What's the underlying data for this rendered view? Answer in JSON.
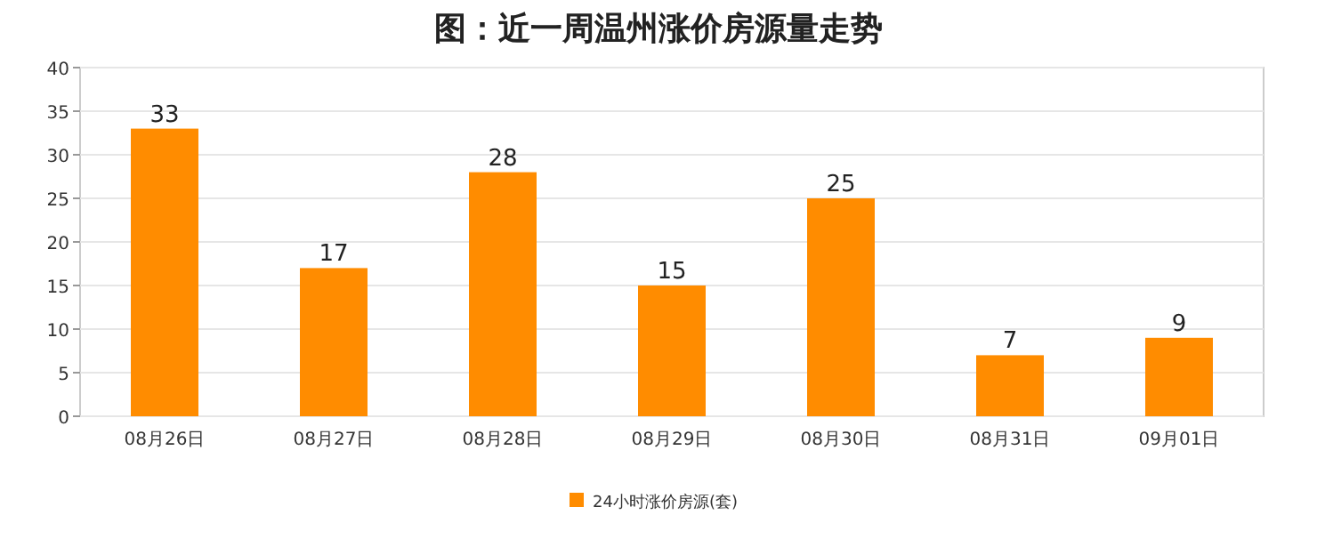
{
  "chart_data": {
    "type": "bar",
    "title": "图：近一周温州涨价房源量走势",
    "categories": [
      "08月26日",
      "08月27日",
      "08月28日",
      "08月29日",
      "08月30日",
      "08月31日",
      "09月01日"
    ],
    "series": [
      {
        "name": "24小时涨价房源(套)",
        "color": "#ff8c00",
        "values": [
          33,
          17,
          28,
          15,
          25,
          7,
          9
        ]
      }
    ],
    "ylim": [
      0,
      40
    ],
    "yticks": [
      0,
      5,
      10,
      15,
      20,
      25,
      30,
      35,
      40
    ],
    "grid": "y",
    "legend": "bottom",
    "data_labels": true
  }
}
